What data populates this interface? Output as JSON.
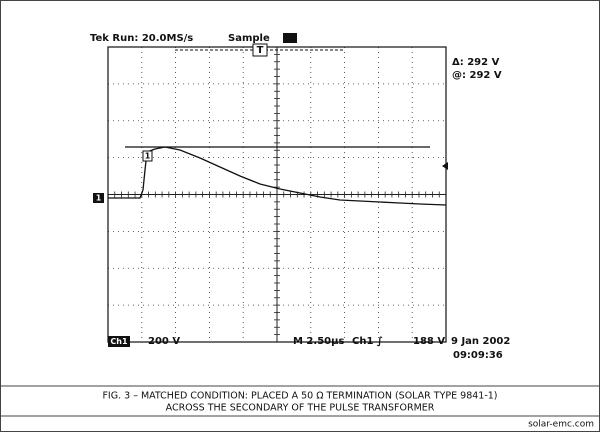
{
  "screen": {
    "header": {
      "run": "Tek Run: 20.0MS/s",
      "mode": "Sample",
      "trigger_marker": "T"
    },
    "readout": {
      "delta": "Δ: 292 V",
      "at": "@: 292 V"
    },
    "channel_marker": "1",
    "cursor_marker": "1",
    "footer": {
      "channel": "Ch1",
      "scale": "200 V",
      "timebase": "M 2.50µs",
      "trigger_source": "Ch1 ∫",
      "trigger_level": "188 V",
      "date": "9 Jan 2002",
      "time": "09:09:36"
    }
  },
  "caption": {
    "line1": "FIG. 3 – MATCHED CONDITION: PLACED A 50 Ω TERMINATION (SOLAR TYPE 9841-1)",
    "line2": "ACROSS THE SECONDARY OF THE PULSE TRANSFORMER"
  },
  "source": "solar-emc.com"
}
